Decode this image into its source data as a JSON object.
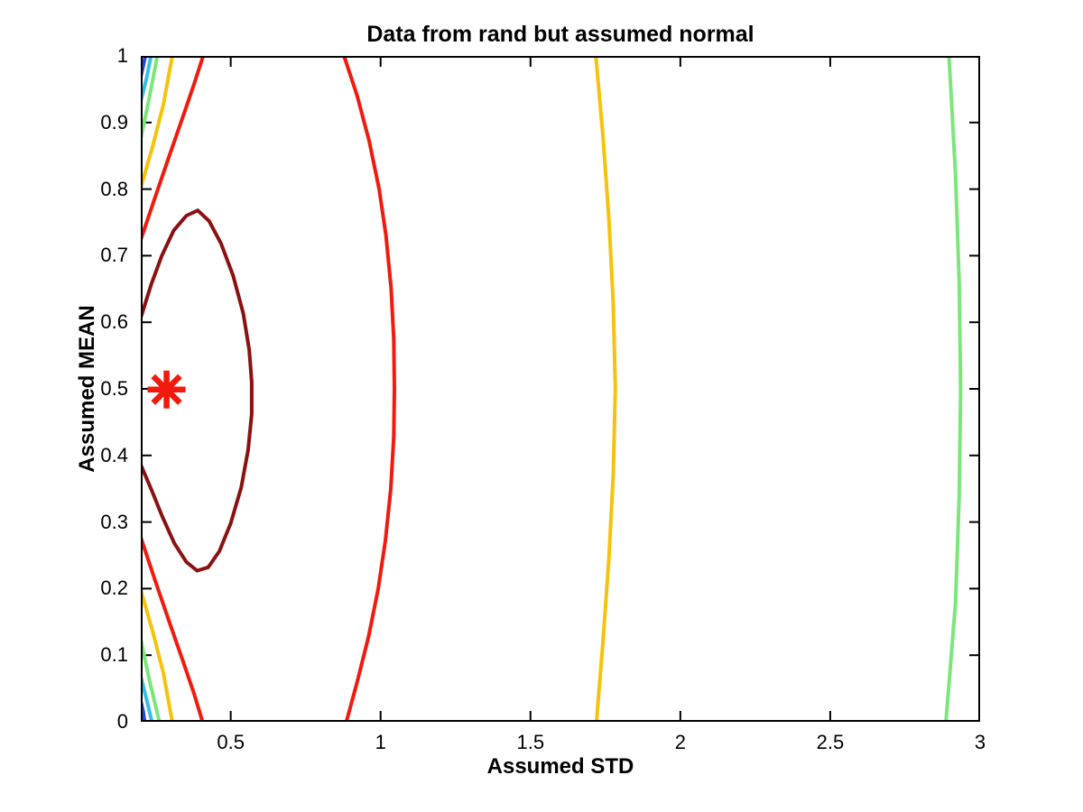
{
  "figure": {
    "background": "#ffffff",
    "axes_color": "#000000"
  },
  "chart_data": {
    "type": "contour",
    "title": "Data from rand but assumed normal",
    "xlabel": "Assumed STD",
    "ylabel": "Assumed MEAN",
    "xlim": [
      0.2,
      3
    ],
    "ylim": [
      0,
      1
    ],
    "xticks": [
      0.5,
      1,
      1.5,
      2,
      2.5,
      3
    ],
    "xtick_labels": [
      "0.5",
      "1",
      "1.5",
      "2",
      "2.5",
      "3"
    ],
    "yticks": [
      0,
      0.1,
      0.2,
      0.3,
      0.4,
      0.5,
      0.6,
      0.7,
      0.8,
      0.9,
      1
    ],
    "ytick_labels": [
      "0",
      "0.1",
      "0.2",
      "0.3",
      "0.4",
      "0.5",
      "0.6",
      "0.7",
      "0.8",
      "0.9",
      "1"
    ],
    "grid": false,
    "box": true,
    "tick_dir": "in",
    "line_width": 4,
    "marker": {
      "shape": "asterisk",
      "x": 0.286,
      "y": 0.499,
      "color": "#f2190d",
      "radius": 21,
      "stroke_width": 6.5,
      "meaning": "likelihood peak at STD 0.29, MEAN 0.5"
    },
    "contours": [
      {
        "rank": 1,
        "note": "innermost / highest likelihood level",
        "color": "#8b1111",
        "paths": [
          [
            [
              0.2,
              0.607
            ],
            [
              0.235,
              0.657
            ],
            [
              0.27,
              0.7
            ],
            [
              0.31,
              0.738
            ],
            [
              0.352,
              0.76
            ],
            [
              0.39,
              0.768
            ],
            [
              0.428,
              0.752
            ],
            [
              0.468,
              0.718
            ],
            [
              0.508,
              0.67
            ],
            [
              0.542,
              0.613
            ],
            [
              0.562,
              0.558
            ],
            [
              0.57,
              0.51
            ],
            [
              0.57,
              0.462
            ],
            [
              0.558,
              0.408
            ],
            [
              0.535,
              0.352
            ],
            [
              0.5,
              0.298
            ],
            [
              0.462,
              0.256
            ],
            [
              0.425,
              0.232
            ],
            [
              0.388,
              0.227
            ],
            [
              0.352,
              0.24
            ],
            [
              0.312,
              0.268
            ],
            [
              0.272,
              0.308
            ],
            [
              0.236,
              0.348
            ],
            [
              0.2,
              0.386
            ]
          ]
        ]
      },
      {
        "rank": 2,
        "color": "#f2190d",
        "paths": [
          [
            [
              0.2,
              0.724
            ],
            [
              0.248,
              0.788
            ],
            [
              0.295,
              0.85
            ],
            [
              0.34,
              0.908
            ],
            [
              0.378,
              0.958
            ],
            [
              0.408,
              1.0
            ]
          ],
          [
            [
              0.878,
              1.0
            ],
            [
              0.922,
              0.94
            ],
            [
              0.962,
              0.872
            ],
            [
              0.995,
              0.8
            ],
            [
              1.018,
              0.73
            ],
            [
              1.035,
              0.652
            ],
            [
              1.044,
              0.575
            ],
            [
              1.046,
              0.5
            ],
            [
              1.044,
              0.428
            ],
            [
              1.034,
              0.35
            ],
            [
              1.016,
              0.272
            ],
            [
              0.992,
              0.2
            ],
            [
              0.96,
              0.128
            ],
            [
              0.922,
              0.06
            ],
            [
              0.886,
              0.0
            ]
          ],
          [
            [
              0.2,
              0.277
            ],
            [
              0.248,
              0.212
            ],
            [
              0.295,
              0.15
            ],
            [
              0.34,
              0.092
            ],
            [
              0.378,
              0.042
            ],
            [
              0.406,
              0.0
            ]
          ]
        ]
      },
      {
        "rank": 3,
        "color": "#f6c20a",
        "paths": [
          [
            [
              0.2,
              0.802
            ],
            [
              0.24,
              0.865
            ],
            [
              0.276,
              0.928
            ],
            [
              0.305,
              1.0
            ]
          ],
          [
            [
              1.718,
              1.0
            ],
            [
              1.742,
              0.878
            ],
            [
              1.762,
              0.752
            ],
            [
              1.776,
              0.628
            ],
            [
              1.783,
              0.5
            ],
            [
              1.776,
              0.372
            ],
            [
              1.762,
              0.248
            ],
            [
              1.742,
              0.122
            ],
            [
              1.72,
              0.0
            ]
          ],
          [
            [
              0.2,
              0.198
            ],
            [
              0.24,
              0.135
            ],
            [
              0.276,
              0.072
            ],
            [
              0.305,
              0.0
            ]
          ]
        ]
      },
      {
        "rank": 4,
        "color": "#7be77b",
        "paths": [
          [
            [
              0.2,
              0.876
            ],
            [
              0.228,
              0.936
            ],
            [
              0.255,
              1.0
            ]
          ],
          [
            [
              2.896,
              1.0
            ],
            [
              2.918,
              0.82
            ],
            [
              2.93,
              0.66
            ],
            [
              2.935,
              0.5
            ],
            [
              2.93,
              0.34
            ],
            [
              2.918,
              0.18
            ],
            [
              2.886,
              0.0
            ]
          ],
          [
            [
              0.2,
              0.124
            ],
            [
              0.228,
              0.064
            ],
            [
              0.262,
              0.0
            ]
          ]
        ]
      },
      {
        "rank": 5,
        "color": "#35beec",
        "paths": [
          [
            [
              0.2,
              0.932
            ],
            [
              0.219,
              0.966
            ],
            [
              0.234,
              1.0
            ]
          ],
          [
            [
              0.2,
              0.068
            ],
            [
              0.219,
              0.034
            ],
            [
              0.237,
              0.0
            ]
          ]
        ]
      },
      {
        "rank": 6,
        "note": "outermost / lowest likelihood level",
        "color": "#2b46dd",
        "paths": [
          [
            [
              0.2,
              0.969
            ],
            [
              0.208,
              0.985
            ],
            [
              0.215,
              1.0
            ]
          ],
          [
            [
              0.2,
              0.031
            ],
            [
              0.208,
              0.015
            ],
            [
              0.213,
              0.0
            ]
          ]
        ]
      }
    ]
  }
}
